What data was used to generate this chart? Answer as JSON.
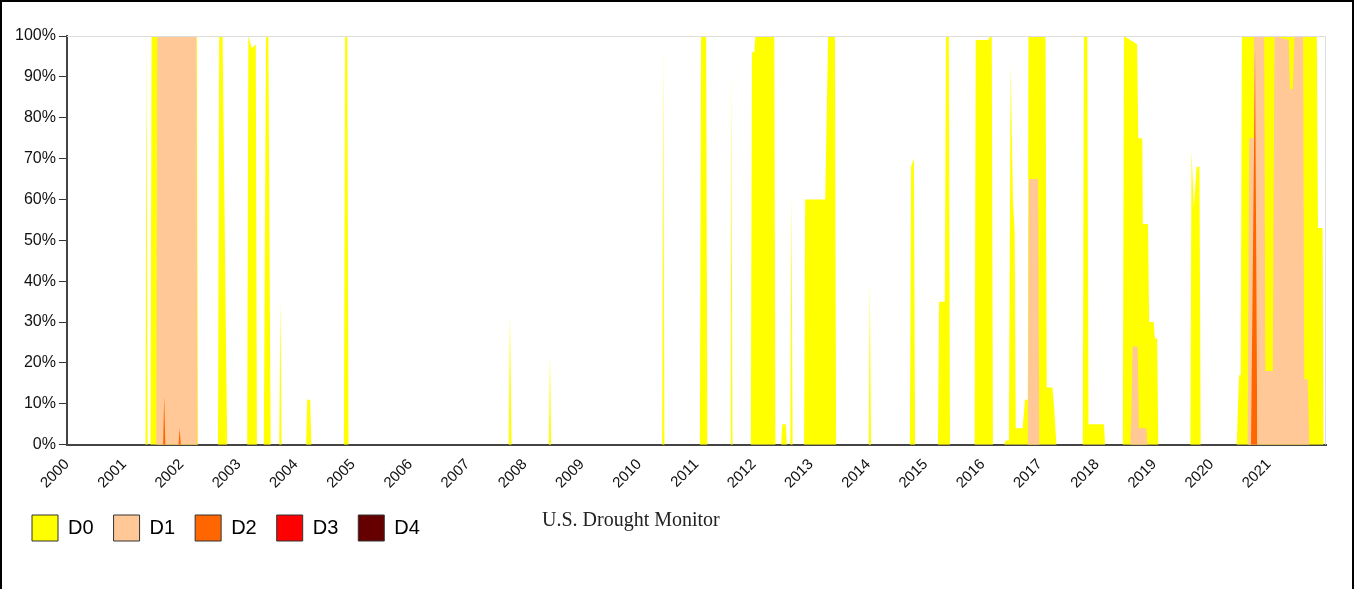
{
  "chart_data": {
    "type": "area",
    "title": "U.S. Drought Monitor",
    "legend": "bottom left",
    "grid": false,
    "xlim": [
      2000,
      2022
    ],
    "xticks": [
      2000,
      2001,
      2002,
      2003,
      2004,
      2005,
      2006,
      2007,
      2008,
      2009,
      2010,
      2011,
      2012,
      2013,
      2014,
      2015,
      2016,
      2017,
      2018,
      2019,
      2020,
      2021,
      {
        "value": 2022,
        "label": null
      }
    ],
    "ylim": [
      0,
      100
    ],
    "yticks": [
      {
        "value": 0,
        "label": "0%"
      },
      {
        "value": 10,
        "label": "10%"
      },
      {
        "value": 20,
        "label": "20%"
      },
      {
        "value": 30,
        "label": "30%"
      },
      {
        "value": 40,
        "label": "40%"
      },
      {
        "value": 50,
        "label": "50%"
      },
      {
        "value": 60,
        "label": "60%"
      },
      {
        "value": 70,
        "label": "70%"
      },
      {
        "value": 80,
        "label": "80%"
      },
      {
        "value": 90,
        "label": "90%"
      },
      {
        "value": 100,
        "label": "100%"
      }
    ],
    "series": [
      {
        "name": "D0",
        "color": "#ffff00",
        "x": [
          2001.37,
          2001.39,
          2001.41,
          2001.46,
          2001.48,
          2002.27,
          2002.29,
          2002.64,
          2002.66,
          2002.72,
          2002.8,
          2003.15,
          2003.17,
          2003.23,
          2003.3,
          2003.32,
          2003.44,
          2003.48,
          2003.52,
          2003.56,
          2003.71,
          2003.73,
          2003.75,
          2004.18,
          2004.2,
          2004.25,
          2004.27,
          2004.84,
          2004.86,
          2004.9,
          2004.92,
          2007.72,
          2007.74,
          2007.77,
          2008.42,
          2008.44,
          2008.46,
          2010.4,
          2010.42,
          2010.44,
          2011.06,
          2011.08,
          2011.17,
          2011.19,
          2011.6,
          2011.61,
          2011.63,
          2011.95,
          2011.97,
          2012.01,
          2012.03,
          2012.36,
          2012.38,
          2012.48,
          2012.5,
          2012.56,
          2012.58,
          2012.64,
          2012.66,
          2012.68,
          2012.88,
          2012.9,
          2013.25,
          2013.3,
          2013.42,
          2013.44,
          2014.01,
          2014.03,
          2014.05,
          2014.73,
          2014.75,
          2014.8,
          2014.82,
          2015.22,
          2015.24,
          2015.34,
          2015.36,
          2015.41,
          2015.43,
          2015.86,
          2015.88,
          2016.1,
          2016.13,
          2016.16,
          2016.18,
          2016.38,
          2016.4,
          2016.46,
          2016.49,
          2016.53,
          2016.56,
          2016.58,
          2016.7,
          2016.74,
          2016.79,
          2016.8,
          2017.1,
          2017.12,
          2017.22,
          2017.25,
          2017.29,
          2017.75,
          2017.77,
          2017.83,
          2017.85,
          2018.12,
          2018.14,
          2018.45,
          2018.47,
          2018.7,
          2018.72,
          2018.79,
          2018.8,
          2018.89,
          2018.91,
          2018.99,
          2019.01,
          2019.05,
          2019.07,
          2019.63,
          2019.65,
          2019.69,
          2019.74,
          2019.79,
          2019.81,
          2020.44,
          2020.48,
          2020.51,
          2020.53,
          2021.84,
          2021.86,
          2021.94,
          2021.96
        ],
        "values": [
          0,
          100,
          0,
          0,
          100,
          100,
          0,
          0,
          100,
          100,
          0,
          0,
          100,
          97,
          98,
          0,
          0,
          100,
          100,
          0,
          0,
          36,
          0,
          0,
          11,
          11,
          0,
          0,
          100,
          100,
          0,
          0,
          32,
          0,
          0,
          22,
          0,
          0,
          97,
          0,
          0,
          100,
          100,
          0,
          0,
          93,
          0,
          0,
          96,
          96,
          100,
          100,
          0,
          0,
          5,
          5,
          0,
          0,
          62,
          0,
          0,
          60,
          60,
          100,
          100,
          0,
          0,
          40,
          0,
          0,
          68,
          70,
          0,
          0,
          35,
          35,
          100,
          100,
          0,
          0,
          99,
          99,
          100,
          100,
          0,
          0,
          1,
          1,
          93,
          60,
          52,
          4,
          4,
          11,
          11,
          100,
          100,
          14,
          14,
          9,
          0,
          0,
          100,
          100,
          5,
          5,
          0,
          0,
          100,
          98,
          75,
          75,
          54,
          54,
          30,
          30,
          26,
          26,
          0,
          0,
          72,
          58,
          68,
          68,
          0,
          0,
          17,
          17,
          100,
          100,
          53,
          53,
          0
        ]
      },
      {
        "name": "D1",
        "color": "#ffc896",
        "x": [
          2001.56,
          2001.58,
          2002.26,
          2002.28,
          2016.79,
          2016.81,
          2016.97,
          2016.99,
          2018.58,
          2018.6,
          2018.62,
          2018.71,
          2018.73,
          2018.86,
          2018.88,
          2020.63,
          2020.66,
          2020.73,
          2020.74,
          2020.92,
          2020.94,
          2021.07,
          2021.1,
          2021.35,
          2021.37,
          2021.42,
          2021.45,
          2021.6,
          2021.62,
          2021.68,
          2021.71
        ],
        "values": [
          0,
          100,
          100,
          0,
          0,
          65,
          65,
          0,
          0,
          8,
          24,
          24,
          4,
          4,
          0,
          0,
          75,
          75,
          100,
          100,
          18,
          18,
          100,
          99,
          87,
          87,
          100,
          100,
          16,
          16,
          0
        ]
      },
      {
        "name": "D2",
        "color": "#ff6600",
        "x": [
          2001.68,
          2001.7,
          2001.72,
          2001.95,
          2001.97,
          2001.99,
          2020.69,
          2020.76,
          2020.8
        ],
        "values": [
          0,
          12,
          0,
          0,
          4,
          0,
          0,
          97,
          0
        ]
      },
      {
        "name": "D3",
        "color": "#ff0000"
      },
      {
        "name": "D4",
        "color": "#660000"
      }
    ]
  }
}
